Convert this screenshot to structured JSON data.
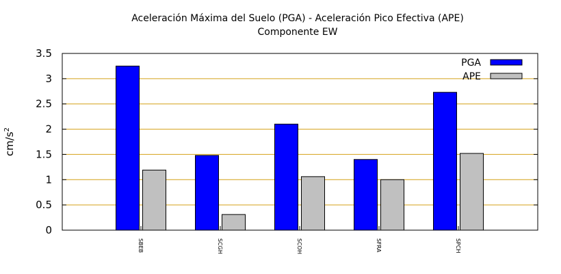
{
  "chart_data": {
    "type": "bar",
    "title": "Aceleración Máxima del Suelo (PGA) -  Aceleración Pico Efectiva (APE)",
    "subtitle": "Componente EW",
    "ylabel_base": "cm/s",
    "ylabel_sup": "2",
    "xlabel": "",
    "ylim": [
      0,
      3.5
    ],
    "yticks": [
      0,
      0.5,
      1,
      1.5,
      2,
      2.5,
      3,
      3.5
    ],
    "ytick_labels": [
      "0",
      "0.5",
      "1",
      "1.5",
      "2",
      "2.5",
      "3",
      "3.5"
    ],
    "grid": true,
    "grid_color": "#d4a017",
    "legend_position": "top-right",
    "categories": [
      "SBEB",
      "SCGH",
      "SCOH",
      "SFRA",
      "SPCH"
    ],
    "series": [
      {
        "name": "PGA",
        "color": "#0000ff",
        "values": [
          3.25,
          1.48,
          2.1,
          1.4,
          2.73
        ]
      },
      {
        "name": "APE",
        "color": "#c0c0c0",
        "values": [
          1.19,
          0.31,
          1.06,
          1.0,
          1.52
        ]
      }
    ]
  }
}
